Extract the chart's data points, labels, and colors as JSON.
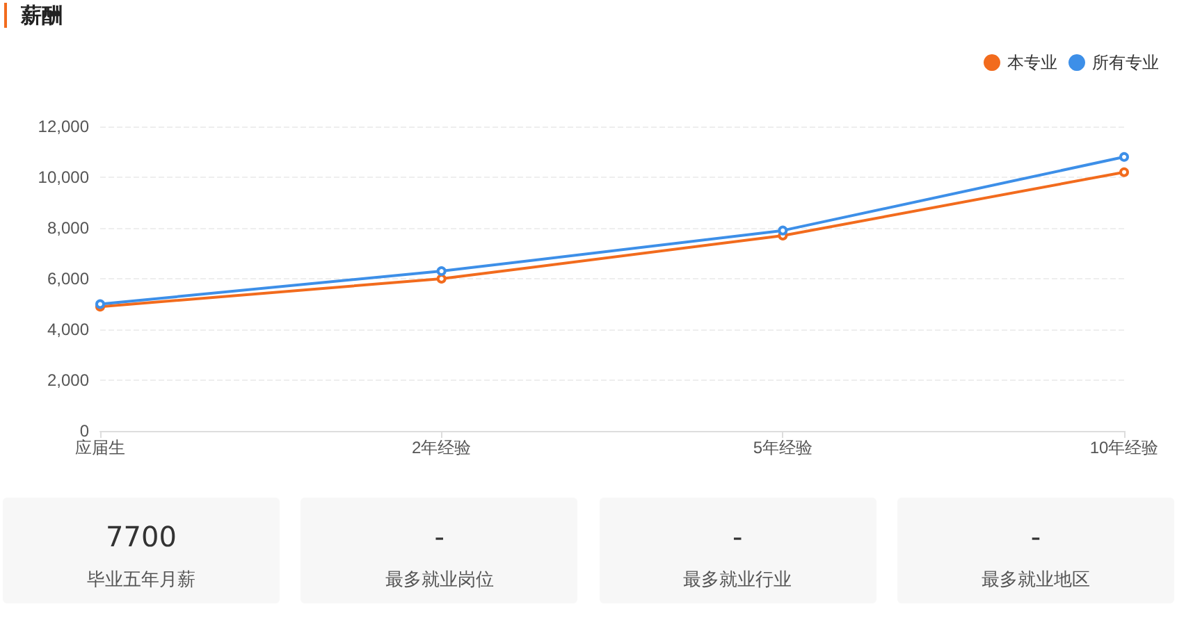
{
  "chart_data": [
    {
      "type": "line",
      "title": "薪酬",
      "categories": [
        "应届生",
        "2年经验",
        "5年经验",
        "10年经验"
      ],
      "series": [
        {
          "name": "本专业",
          "color": "#f26b1d",
          "values": [
            4900,
            6000,
            7700,
            10200
          ]
        },
        {
          "name": "所有专业",
          "color": "#3d8fe8",
          "values": [
            5000,
            6300,
            7900,
            10800
          ]
        }
      ],
      "ylim": [
        0,
        12000
      ],
      "yticks": [
        0,
        {
          "value": 2000,
          "label": "2,000"
        },
        {
          "value": 4000,
          "label": "4,000"
        },
        {
          "value": 6000,
          "label": "6,000"
        },
        {
          "value": 8000,
          "label": "8,000"
        },
        {
          "value": 10000,
          "label": "10,000"
        },
        {
          "value": 12000,
          "label": "12,000"
        }
      ],
      "grid": "y",
      "legend": "top right",
      "marker": "circle",
      "line_style": "solid"
    },
    {
      "type": "other",
      "annotations": [
        "7700",
        "毕业五年月薪",
        "-",
        "最多就业岗位",
        "-",
        "最多就业行业",
        "-",
        "最多就业地区"
      ]
    }
  ]
}
